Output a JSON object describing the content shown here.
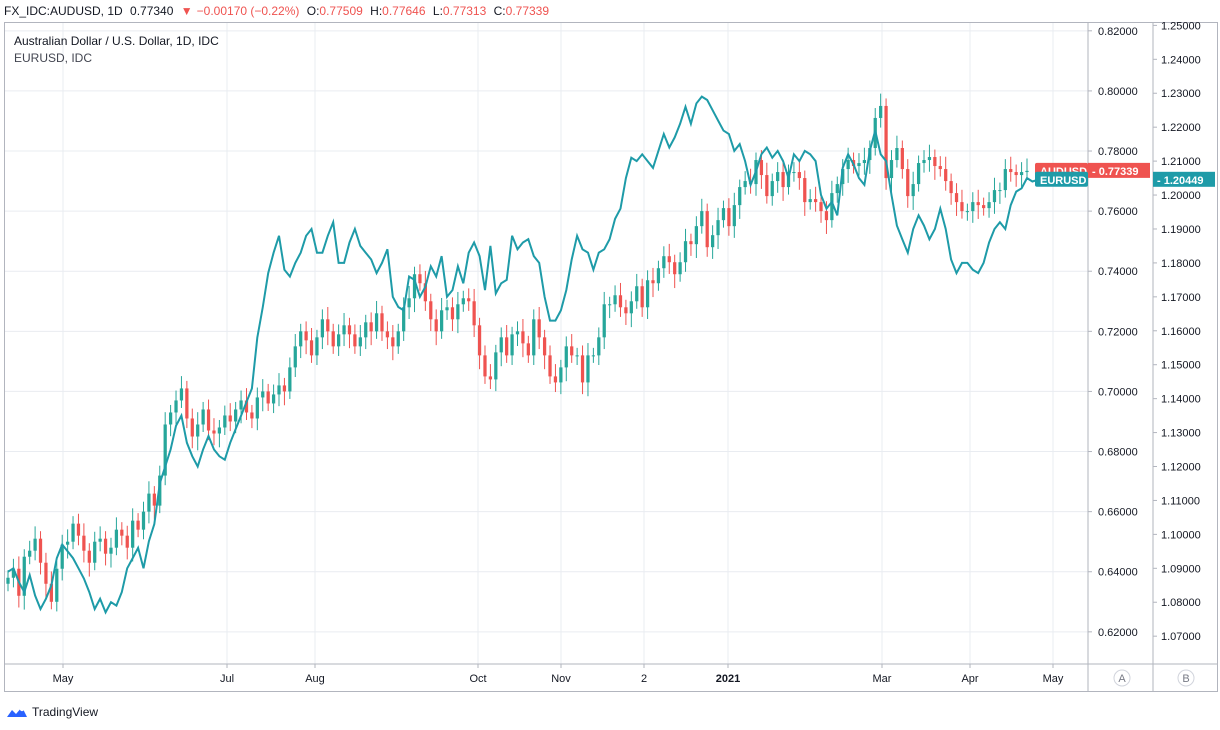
{
  "header": {
    "symbol": "FX_IDC:AUDUSD, 1D",
    "last": "0.77340",
    "change_arrow": "▼",
    "change": "−0.00170 (−0.22%)",
    "o_label": "O:",
    "o_value": "0.77509",
    "h_label": "H:",
    "h_value": "0.77646",
    "l_label": "L:",
    "l_value": "0.77313",
    "c_label": "C:",
    "c_value": "0.77339"
  },
  "legend": {
    "main": "Australian Dollar / U.S. Dollar, 1D, IDC",
    "compare": "EURUSD, IDC"
  },
  "scale_buttons": [
    "A",
    "B"
  ],
  "footer": {
    "brand": "TradingView"
  },
  "colors": {
    "up": "#26a69a",
    "down": "#ef5350",
    "compare_line": "#1e9ba8",
    "grid": "#e9ecf1",
    "axis": "#b2b5be"
  },
  "chart_data": {
    "type": "line",
    "title": "Australian Dollar / U.S. Dollar, 1D, IDC",
    "x_ticks": [
      "May",
      "Jul",
      "Aug",
      "Oct",
      "Nov",
      "2",
      "2021",
      "Mar",
      "Apr",
      "May"
    ],
    "y_axis_left": {
      "ticks": [
        "0.82000",
        "0.80000",
        "0.78000",
        "0.76000",
        "0.74000",
        "0.72000",
        "0.70000",
        "0.68000",
        "0.66000",
        "0.64000",
        "0.62000"
      ],
      "range": [
        0.6093,
        0.8226
      ]
    },
    "y_axis_right": {
      "ticks": [
        "1.25000",
        "1.24000",
        "1.23000",
        "1.22000",
        "1.21000",
        "1.20000",
        "1.19000",
        "1.18000",
        "1.17000",
        "1.16000",
        "1.15000",
        "1.14000",
        "1.13000",
        "1.12000",
        "1.11000",
        "1.10000",
        "1.09000",
        "1.08000",
        "1.07000"
      ],
      "range": [
        1.0618,
        1.2507
      ]
    },
    "series": [
      {
        "name": "AUDUSD",
        "kind": "candlestick_close",
        "badge": "AUDUSD",
        "last_value": "0.77339",
        "values": [
          0.638,
          0.641,
          0.632,
          0.645,
          0.647,
          0.651,
          0.643,
          0.636,
          0.63,
          0.641,
          0.649,
          0.65,
          0.656,
          0.652,
          0.647,
          0.643,
          0.65,
          0.651,
          0.646,
          0.648,
          0.654,
          0.652,
          0.648,
          0.657,
          0.654,
          0.66,
          0.666,
          0.662,
          0.672,
          0.689,
          0.693,
          0.697,
          0.701,
          0.691,
          0.685,
          0.689,
          0.694,
          0.687,
          0.686,
          0.688,
          0.692,
          0.69,
          0.694,
          0.697,
          0.693,
          0.691,
          0.698,
          0.7,
          0.696,
          0.699,
          0.702,
          0.7,
          0.708,
          0.715,
          0.72,
          0.717,
          0.712,
          0.718,
          0.724,
          0.72,
          0.715,
          0.719,
          0.722,
          0.719,
          0.715,
          0.718,
          0.723,
          0.72,
          0.726,
          0.72,
          0.718,
          0.715,
          0.72,
          0.728,
          0.731,
          0.739,
          0.736,
          0.73,
          0.724,
          0.72,
          0.727,
          0.728,
          0.724,
          0.729,
          0.731,
          0.73,
          0.722,
          0.712,
          0.705,
          0.704,
          0.713,
          0.718,
          0.712,
          0.719,
          0.72,
          0.716,
          0.712,
          0.724,
          0.718,
          0.712,
          0.705,
          0.703,
          0.708,
          0.715,
          0.712,
          0.712,
          0.703,
          0.712,
          0.712,
          0.718,
          0.729,
          0.729,
          0.732,
          0.728,
          0.726,
          0.73,
          0.735,
          0.728,
          0.737,
          0.736,
          0.741,
          0.745,
          0.743,
          0.739,
          0.743,
          0.75,
          0.749,
          0.755,
          0.76,
          0.748,
          0.752,
          0.757,
          0.761,
          0.755,
          0.762,
          0.768,
          0.77,
          0.769,
          0.777,
          0.772,
          0.765,
          0.77,
          0.773,
          0.768,
          0.773,
          0.773,
          0.771,
          0.763,
          0.764,
          0.763,
          0.76,
          0.757,
          0.766,
          0.769,
          0.774,
          0.777,
          0.775,
          0.776,
          0.777,
          0.781,
          0.791,
          0.795,
          0.771,
          0.777,
          0.781,
          0.774,
          0.765,
          0.769,
          0.776,
          0.777,
          0.778,
          0.775,
          0.774,
          0.77,
          0.766,
          0.763,
          0.76,
          0.76,
          0.763,
          0.762,
          0.761,
          0.763,
          0.767,
          0.767,
          0.774,
          0.773,
          0.772,
          0.773,
          0.7734
        ],
        "low": 0.6268,
        "high": 0.8015
      },
      {
        "name": "EURUSD",
        "kind": "line",
        "badge": "EURUSD",
        "last_value": "1.20449",
        "values": [
          1.089,
          1.09,
          1.086,
          1.083,
          1.088,
          1.082,
          1.078,
          1.081,
          1.085,
          1.093,
          1.097,
          1.095,
          1.093,
          1.09,
          1.087,
          1.083,
          1.078,
          1.081,
          1.077,
          1.08,
          1.079,
          1.083,
          1.09,
          1.093,
          1.096,
          1.09,
          1.098,
          1.103,
          1.115,
          1.12,
          1.125,
          1.132,
          1.135,
          1.127,
          1.123,
          1.12,
          1.125,
          1.129,
          1.125,
          1.123,
          1.122,
          1.127,
          1.131,
          1.135,
          1.139,
          1.143,
          1.158,
          1.167,
          1.177,
          1.183,
          1.188,
          1.178,
          1.176,
          1.18,
          1.183,
          1.188,
          1.19,
          1.183,
          1.183,
          1.188,
          1.192,
          1.18,
          1.18,
          1.186,
          1.19,
          1.185,
          1.183,
          1.181,
          1.177,
          1.18,
          1.184,
          1.17,
          1.167,
          1.166,
          1.176,
          1.175,
          1.17,
          1.173,
          1.179,
          1.176,
          1.182,
          1.17,
          1.172,
          1.179,
          1.174,
          1.183,
          1.186,
          1.182,
          1.172,
          1.185,
          1.171,
          1.174,
          1.175,
          1.188,
          1.184,
          1.186,
          1.187,
          1.182,
          1.18,
          1.17,
          1.163,
          1.163,
          1.166,
          1.172,
          1.181,
          1.188,
          1.184,
          1.183,
          1.178,
          1.183,
          1.184,
          1.187,
          1.193,
          1.196,
          1.205,
          1.211,
          1.21,
          1.212,
          1.21,
          1.208,
          1.213,
          1.218,
          1.214,
          1.217,
          1.221,
          1.226,
          1.221,
          1.227,
          1.229,
          1.228,
          1.225,
          1.222,
          1.219,
          1.218,
          1.213,
          1.215,
          1.21,
          1.203,
          1.207,
          1.212,
          1.214,
          1.211,
          1.213,
          1.21,
          1.205,
          1.212,
          1.21,
          1.213,
          1.212,
          1.21,
          1.2,
          1.196,
          1.198,
          1.194,
          1.208,
          1.212,
          1.209,
          1.205,
          1.203,
          1.213,
          1.219,
          1.212,
          1.21,
          1.2,
          1.191,
          1.187,
          1.183,
          1.19,
          1.194,
          1.191,
          1.187,
          1.19,
          1.196,
          1.19,
          1.181,
          1.177,
          1.18,
          1.18,
          1.178,
          1.177,
          1.18,
          1.186,
          1.19,
          1.192,
          1.19,
          1.197,
          1.201,
          1.202,
          1.205,
          1.204,
          1.20449
        ]
      }
    ],
    "grid": true,
    "legend_position": "top-left"
  }
}
